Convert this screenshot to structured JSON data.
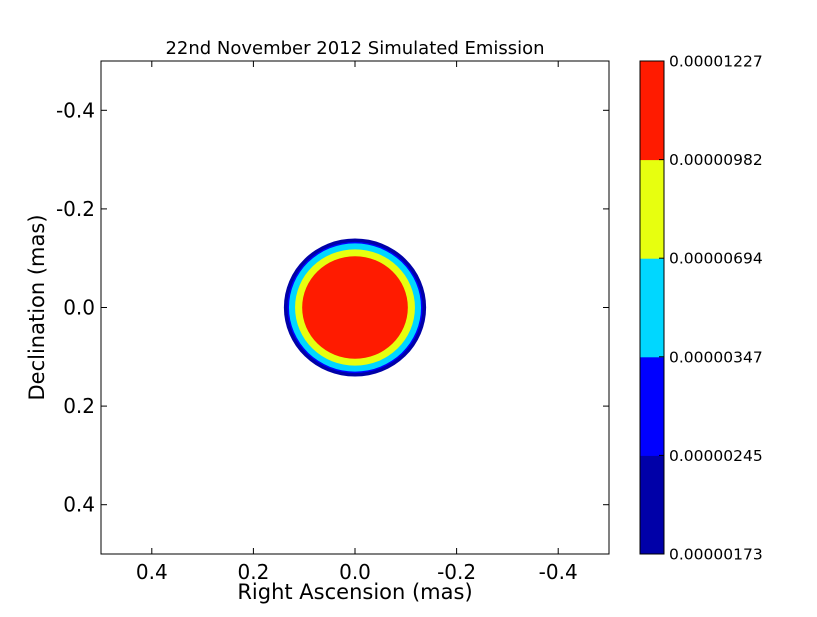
{
  "chart_data": {
    "type": "heatmap",
    "title": "22nd November 2012 Simulated Emission",
    "xlabel": "Right Ascension (mas)",
    "ylabel": "Declination (mas)",
    "xlim": [
      0.5,
      -0.5
    ],
    "ylim": [
      0.5,
      -0.5
    ],
    "xticks": [
      0.4,
      0.2,
      0.0,
      -0.2,
      -0.4
    ],
    "xtick_labels": [
      "0.4",
      "0.2",
      "0.0",
      "-0.2",
      "-0.4"
    ],
    "yticks": [
      -0.4,
      -0.2,
      0.0,
      0.2,
      0.4
    ],
    "ytick_labels": [
      "-0.4",
      "-0.2",
      "0.0",
      "0.2",
      "0.4"
    ],
    "grid": false,
    "source": {
      "center": [
        0.0,
        0.0
      ]
    },
    "contour_levels": [
      {
        "label": "0.00000173",
        "lower": 1.73e-06,
        "upper": 2.45e-06,
        "color": "#0000a8",
        "radius": 0.14
      },
      {
        "label": "0.00000245",
        "lower": 2.45e-06,
        "upper": 3.47e-06,
        "color": "#0000ff",
        "radius": 0.133
      },
      {
        "label": "0.00000347",
        "lower": 3.47e-06,
        "upper": 6.94e-06,
        "color": "#00d7ff",
        "radius": 0.13
      },
      {
        "label": "0.00000694",
        "lower": 6.94e-06,
        "upper": 9.82e-06,
        "color": "#e7ff0f",
        "radius": 0.118
      },
      {
        "label": "0.00000982",
        "lower": 9.82e-06,
        "upper": 1.227e-05,
        "color": "#ff1b00",
        "radius": 0.104
      }
    ],
    "colorbar": {
      "tick_labels": [
        "0.00000173",
        "0.00000245",
        "0.00000347",
        "0.00000694",
        "0.00000982",
        "0.00001227"
      ],
      "segment_colors": [
        "#0000a8",
        "#0000ff",
        "#00d7ff",
        "#e7ff0f",
        "#ff1b00"
      ]
    }
  }
}
